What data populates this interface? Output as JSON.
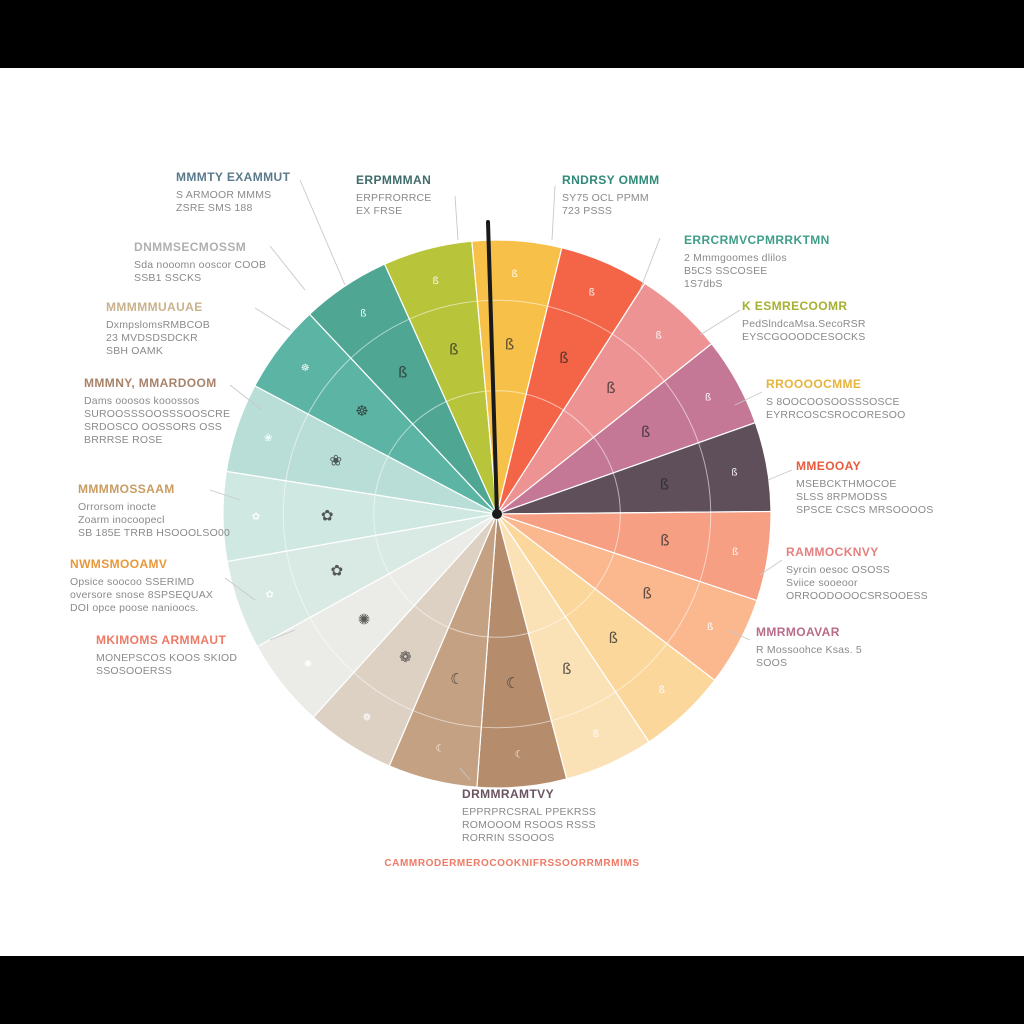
{
  "colors": {
    "segments": [
      "#cfe8e2",
      "#b9ded7",
      "#5cb5a4",
      "#4fa793",
      "#b8c43a",
      "#f7c048",
      "#f46547",
      "#ee9394",
      "#c47895",
      "#5e4f5b",
      "#f69f83",
      "#fbb88f",
      "#fcd79c",
      "#fbe2b6",
      "#b58c6c",
      "#c4a183",
      "#ddd1c4",
      "#ebebe7",
      "#d9e9e3"
    ],
    "label_colors": [
      "#5a7a8c",
      "#3f6b6b",
      "#2f8a79",
      "#3f9e89",
      "#a6b030",
      "#e6b43a",
      "#e65a3e",
      "#e48080",
      "#b96b8a",
      "#6b5462",
      "#ee7a66",
      "#e8983a",
      "#c99c62",
      "#a8836a",
      "#c9b28c",
      "#b0b0b0",
      "#a89a8a",
      "#b6a890"
    ]
  },
  "labels": [
    {
      "title": "MMMTY EXAMMUT",
      "lines": [
        "S ARMOOR MMMS",
        "ZSRE SMS 188"
      ]
    },
    {
      "title": "ERPMMMAN",
      "lines": [
        "ERPFRORRCE",
        "EX FRSE"
      ]
    },
    {
      "title": "RNDRSY OMMM",
      "lines": [
        "SY75 OCL PPMM",
        "723 PSSS"
      ]
    },
    {
      "title": "ERRCRMVCPMRRKTMN",
      "lines": [
        "2 Mmmgoomes dlilos",
        "B5CS SSCOSEE",
        "1S7dbS"
      ]
    },
    {
      "title": "K ESMRECOOMR",
      "lines": [
        "PedSlndcaMsa.SecoRSR",
        "EYSCGOOODCESOCKS"
      ]
    },
    {
      "title": "RROOOOCMME",
      "lines": [
        "S 8OOCOOSOOSSSOSCE",
        "EYRRCOSCSROCORESOO"
      ]
    },
    {
      "title": "MMEOOAY",
      "lines": [
        "MSEBCKTHMOCOE",
        "SLSS 8RPMODSS",
        "SPSCE CSCS MRSOOOOS"
      ]
    },
    {
      "title": "RAMMOCKNVY",
      "lines": [
        "Syrcin oesoc OSOSS",
        "Sviice sooeoor",
        "ORROODOOOCSRSOOESS"
      ]
    },
    {
      "title": "MMRMOAVAR",
      "lines": [
        "R Mossoohce Ksas. 5",
        "SOOS"
      ]
    },
    {
      "title": "DRMMRAMTVY",
      "lines": [
        "EPPRPRCSRAL PPEKRSS",
        "ROMOOOM RSOOS RSSS",
        "RORRIN SSOOOS"
      ]
    },
    {
      "title": "MKIMOMS ARMMAUT",
      "lines": [
        "MONEPSCOS KOOS SKIOD",
        "SSOSOOERSS"
      ]
    },
    {
      "title": "NWMSMOOAMV",
      "lines": [
        "Opsice soocoo SSERIMD",
        "oversore snose 8SPSEQUAX",
        "DOI opce poose nanioocs."
      ]
    },
    {
      "title": "MMMMOSSAAM",
      "lines": [
        "Orrorsom inocte",
        "Zoarm inocoopecl",
        "SB 185E TRRB HSOOOLSO00"
      ]
    },
    {
      "title": "MMMNY, MMARDOOM",
      "lines": [
        "Dams ooosos kooossos",
        "SUROOSSSOOSSSOOSCRE",
        "SRDOSCO OOSSORS OSS",
        "BRRRSE ROSE"
      ]
    },
    {
      "title": "MMMMMUAUAE",
      "lines": [
        "DxmpslomsRMBCOB",
        "23 MVDSDSDCKR",
        "SBH OAMK"
      ]
    },
    {
      "title": "DNMMSECMOSSM",
      "lines": [
        "Sda nooomn ooscor COOB",
        "SSB1 SSCKS"
      ]
    }
  ],
  "footer": "CAMMRODERMEROCOOKNIFRSSOORRMRMIMS",
  "segment_glyphs": [
    "✿",
    "❀",
    "☸",
    "ß",
    "ß",
    "ß",
    "ß",
    "ß",
    "ß",
    "ß",
    "ß",
    "ß",
    "ß",
    "ß",
    "☾",
    "☾",
    "❁",
    "✺"
  ]
}
